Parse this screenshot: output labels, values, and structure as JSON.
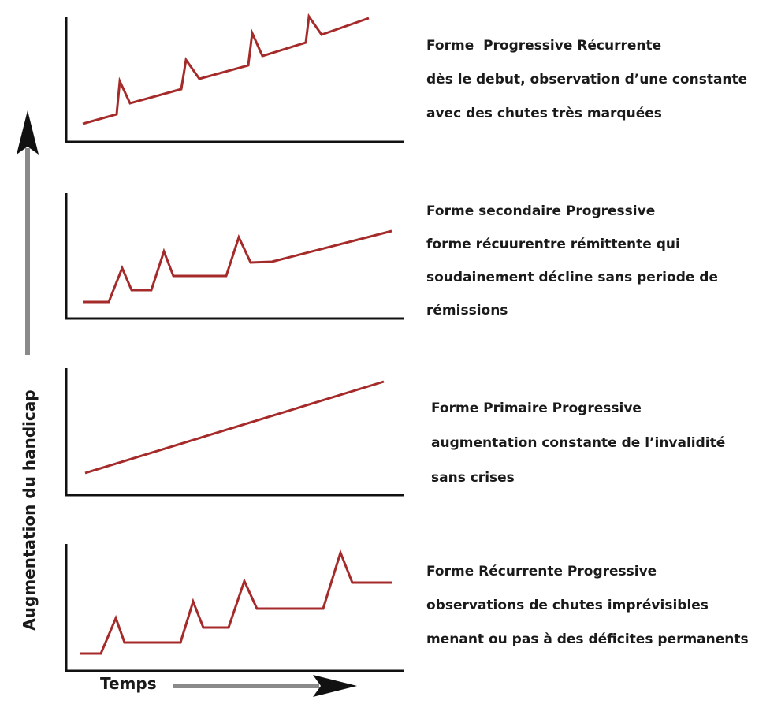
{
  "axes": {
    "y_label": "Augmentation du handicap",
    "x_label": "Temps"
  },
  "panels": [
    {
      "id": "progressive-recurrente",
      "title": "Forme  Progressive Récurrente",
      "lines": [
        "dès le debut, observation d’une constante",
        "avec des chutes très marquées"
      ]
    },
    {
      "id": "secondaire-progressive",
      "title": "Forme secondaire Progressive",
      "lines": [
        "forme récuurentre rémittente qui",
        "soudainement décline sans periode de",
        "rémissions"
      ]
    },
    {
      "id": "primaire-progressive",
      "title": "Forme Primaire Progressive",
      "lines": [
        "augmentation constante de l’invalidité",
        "sans crises"
      ]
    },
    {
      "id": "recurrente-progressive",
      "title": "Forme Récurrente Progressive",
      "lines": [
        "observations de chutes imprévisibles",
        "menant ou pas à des déficites permanents"
      ]
    }
  ],
  "colors": {
    "curve": "#a52a2a",
    "axis": "#111111",
    "arrow_shaft": "#8a8a8a"
  }
}
